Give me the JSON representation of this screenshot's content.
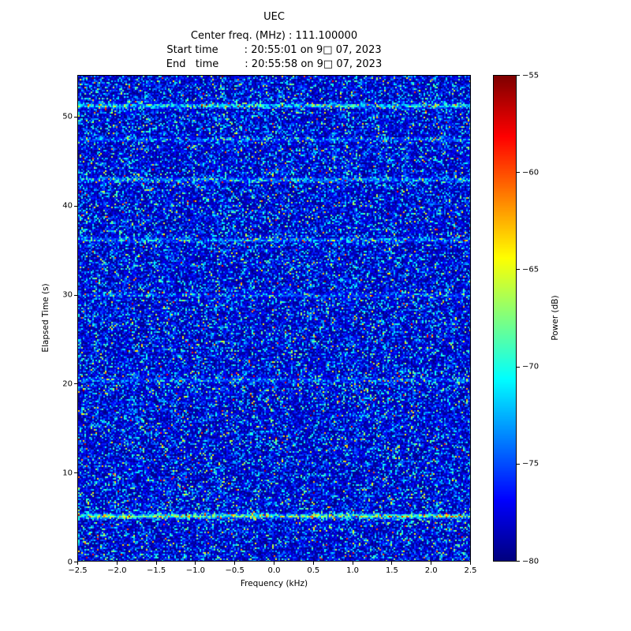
{
  "figure": {
    "title": "UEC",
    "center_freq_line": "Center freq. (MHz) : 111.100000",
    "start_time_line": "Start time        : 20:55:01 on 9□ 07, 2023",
    "end_time_line": "End   time        : 20:55:58 on 9□ 07, 2023"
  },
  "chart_data": {
    "type": "heatmap",
    "title": "UEC",
    "subtitle_lines": [
      "Center freq. (MHz) : 111.100000",
      "Start time        : 20:55:01 on 9□ 07, 2023",
      "End   time        : 20:55:58 on 9□ 07, 2023"
    ],
    "xlabel": "Frequency (kHz)",
    "ylabel": "Elapsed Time (s)",
    "colorbar_label": "Power (dB)",
    "x_range_khz": [
      -2.5,
      2.5
    ],
    "y_range_s": [
      0,
      54.6
    ],
    "power_range_db": [
      -80,
      -55
    ],
    "colormap": "jet",
    "grid": false,
    "legend": "colorbar-right",
    "x_ticks": [
      {
        "value": -2.5,
        "label": "−2.5"
      },
      {
        "value": -2.0,
        "label": "−2.0"
      },
      {
        "value": -1.5,
        "label": "−1.5"
      },
      {
        "value": -1.0,
        "label": "−1.0"
      },
      {
        "value": -0.5,
        "label": "−0.5"
      },
      {
        "value": 0.0,
        "label": "0.0"
      },
      {
        "value": 0.5,
        "label": "0.5"
      },
      {
        "value": 1.0,
        "label": "1.0"
      },
      {
        "value": 1.5,
        "label": "1.5"
      },
      {
        "value": 2.0,
        "label": "2.0"
      },
      {
        "value": 2.5,
        "label": "2.5"
      }
    ],
    "y_ticks": [
      {
        "value": 0,
        "label": "0"
      },
      {
        "value": 10,
        "label": "10"
      },
      {
        "value": 20,
        "label": "20"
      },
      {
        "value": 30,
        "label": "30"
      },
      {
        "value": 40,
        "label": "40"
      },
      {
        "value": 50,
        "label": "50"
      }
    ],
    "colorbar_ticks": [
      {
        "value": -55,
        "label": "−55"
      },
      {
        "value": -60,
        "label": "−60"
      },
      {
        "value": -65,
        "label": "−65"
      },
      {
        "value": -70,
        "label": "−70"
      },
      {
        "value": -75,
        "label": "−75"
      },
      {
        "value": -80,
        "label": "−80"
      }
    ],
    "noise_model": {
      "description": "broadband noise floor with random speckle",
      "floor_db": -80,
      "mean_excess_db": 3.5,
      "seed": 20230907
    },
    "interference_lines": [
      {
        "elapsed_s": 5.2,
        "boost_db": 8.0
      },
      {
        "elapsed_s": 20.5,
        "boost_db": 2.5
      },
      {
        "elapsed_s": 30.0,
        "boost_db": 2.0
      },
      {
        "elapsed_s": 36.2,
        "boost_db": 3.0
      },
      {
        "elapsed_s": 43.0,
        "boost_db": 3.5
      },
      {
        "elapsed_s": 47.5,
        "boost_db": 2.5
      },
      {
        "elapsed_s": 51.3,
        "boost_db": 5.5
      }
    ]
  }
}
